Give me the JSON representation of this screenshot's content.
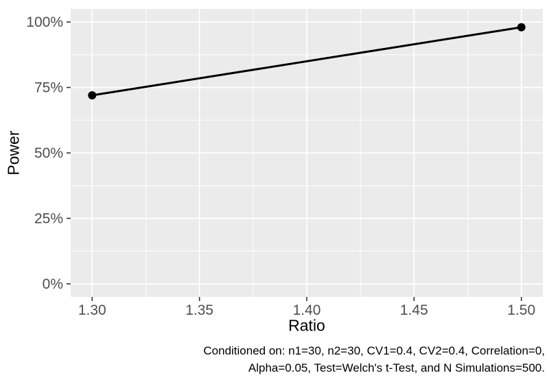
{
  "chart_data": {
    "type": "line",
    "title": "",
    "xlabel": "Ratio",
    "ylabel": "Power",
    "xlim": [
      1.29,
      1.51
    ],
    "ylim_percent": [
      -5,
      105
    ],
    "grid": true,
    "legend": "none",
    "x_ticks": {
      "values": [
        1.3,
        1.35,
        1.4,
        1.45,
        1.5
      ],
      "labels": [
        "1.30",
        "1.35",
        "1.40",
        "1.45",
        "1.50"
      ]
    },
    "y_ticks": {
      "values": [
        0,
        25,
        50,
        75,
        100
      ],
      "labels": [
        "0%",
        "25%",
        "50%",
        "75%",
        "100%"
      ]
    },
    "x_minor": [
      1.325,
      1.375,
      1.425,
      1.475
    ],
    "y_minor_percent": [
      12.5,
      37.5,
      62.5,
      87.5
    ],
    "series": [
      {
        "name": "power",
        "x": [
          1.3,
          1.5
        ],
        "y_percent": [
          72,
          98
        ]
      }
    ]
  },
  "caption": {
    "line1": "Conditioned on: n1=30, n2=30, CV1=0.4, CV2=0.4, Correlation=0,",
    "line2": "Alpha=0.05, Test=Welch's t-Test, and N Simulations=500."
  },
  "colors": {
    "panel_bg": "#EBEBEB",
    "grid": "#FFFFFF",
    "axis_text": "#4D4D4D",
    "tick": "#333333",
    "line": "#000000",
    "point": "#000000",
    "title_text": "#000000"
  }
}
